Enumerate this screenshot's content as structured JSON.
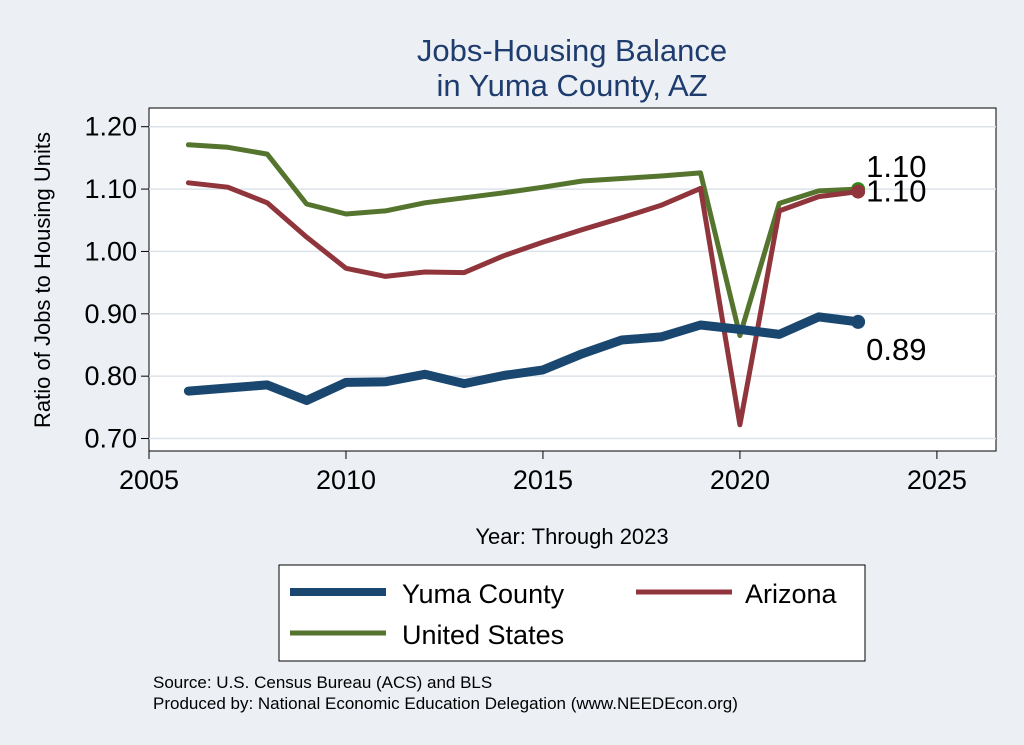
{
  "chart_data": {
    "type": "line",
    "title": [
      "Jobs-Housing Balance",
      "in Yuma County, AZ"
    ],
    "xlabel": "Year: Through 2023",
    "ylabel": "Ratio of Jobs to Housing Units",
    "xlim": [
      2005,
      2026.5
    ],
    "ylim": [
      0.68,
      1.23
    ],
    "xticks": [
      2005,
      2010,
      2015,
      2020,
      2025
    ],
    "yticks": [
      0.7,
      0.8,
      0.9,
      1.0,
      1.1,
      1.2
    ],
    "ytick_labels": [
      "0.70",
      "0.80",
      "0.90",
      "1.00",
      "1.10",
      "1.20"
    ],
    "grid": true,
    "legend_position": "bottom",
    "x": [
      2006,
      2007,
      2008,
      2009,
      2010,
      2011,
      2012,
      2013,
      2014,
      2015,
      2016,
      2017,
      2018,
      2019,
      2020,
      2021,
      2022,
      2023
    ],
    "series": [
      {
        "name": "Yuma County",
        "color": "#1a476f",
        "values": [
          0.776,
          0.781,
          0.786,
          0.761,
          0.79,
          0.791,
          0.803,
          0.788,
          0.801,
          0.81,
          0.836,
          0.858,
          0.863,
          0.882,
          0.875,
          0.867,
          0.895,
          0.887
        ],
        "end_label": "0.89"
      },
      {
        "name": "Arizona",
        "color": "#90353b",
        "values": [
          1.11,
          1.103,
          1.078,
          1.023,
          0.973,
          0.96,
          0.967,
          0.966,
          0.993,
          1.015,
          1.035,
          1.054,
          1.074,
          1.101,
          0.722,
          1.065,
          1.088,
          1.096
        ],
        "end_label": "1.10"
      },
      {
        "name": "United States",
        "color": "#55752f",
        "values": [
          1.171,
          1.167,
          1.156,
          1.076,
          1.06,
          1.065,
          1.078,
          1.086,
          1.094,
          1.103,
          1.113,
          1.117,
          1.121,
          1.126,
          0.865,
          1.077,
          1.097,
          1.1
        ],
        "end_label": "1.10"
      }
    ]
  },
  "legend": {
    "items": [
      "Yuma County",
      "Arizona",
      "United States"
    ]
  },
  "source": {
    "line1": "Source: U.S. Census Bureau (ACS) and BLS",
    "line2": "Produced by: National Economic Education Delegation (www.NEEDEcon.org)"
  },
  "colors": {
    "background": "#ecf0f5",
    "plot_area": "#ffffff",
    "title": "#1e3c6e",
    "us_endpoint": "#2e8b1a"
  }
}
